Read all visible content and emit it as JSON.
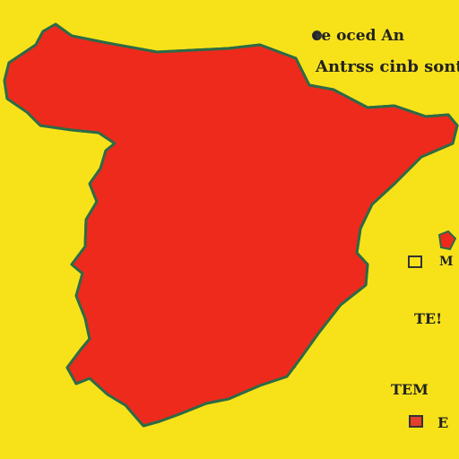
{
  "title": {
    "line1": "ce oced An",
    "line2": "Antrss cinb sont"
  },
  "legend": [
    {
      "label": "M",
      "color": "#f7e21a"
    },
    {
      "label": "TE!",
      "color": ""
    },
    {
      "label": "TEM",
      "color": ""
    },
    {
      "label": "E",
      "color": "#e4402a"
    }
  ],
  "colors": {
    "background": "#f7e21a",
    "land": "#ee2a1c",
    "outline": "#2c6b46",
    "region_border": "#8c1a14",
    "hotspot_light": "#ffcc33",
    "hotspot_dark": "#3d0a08"
  }
}
